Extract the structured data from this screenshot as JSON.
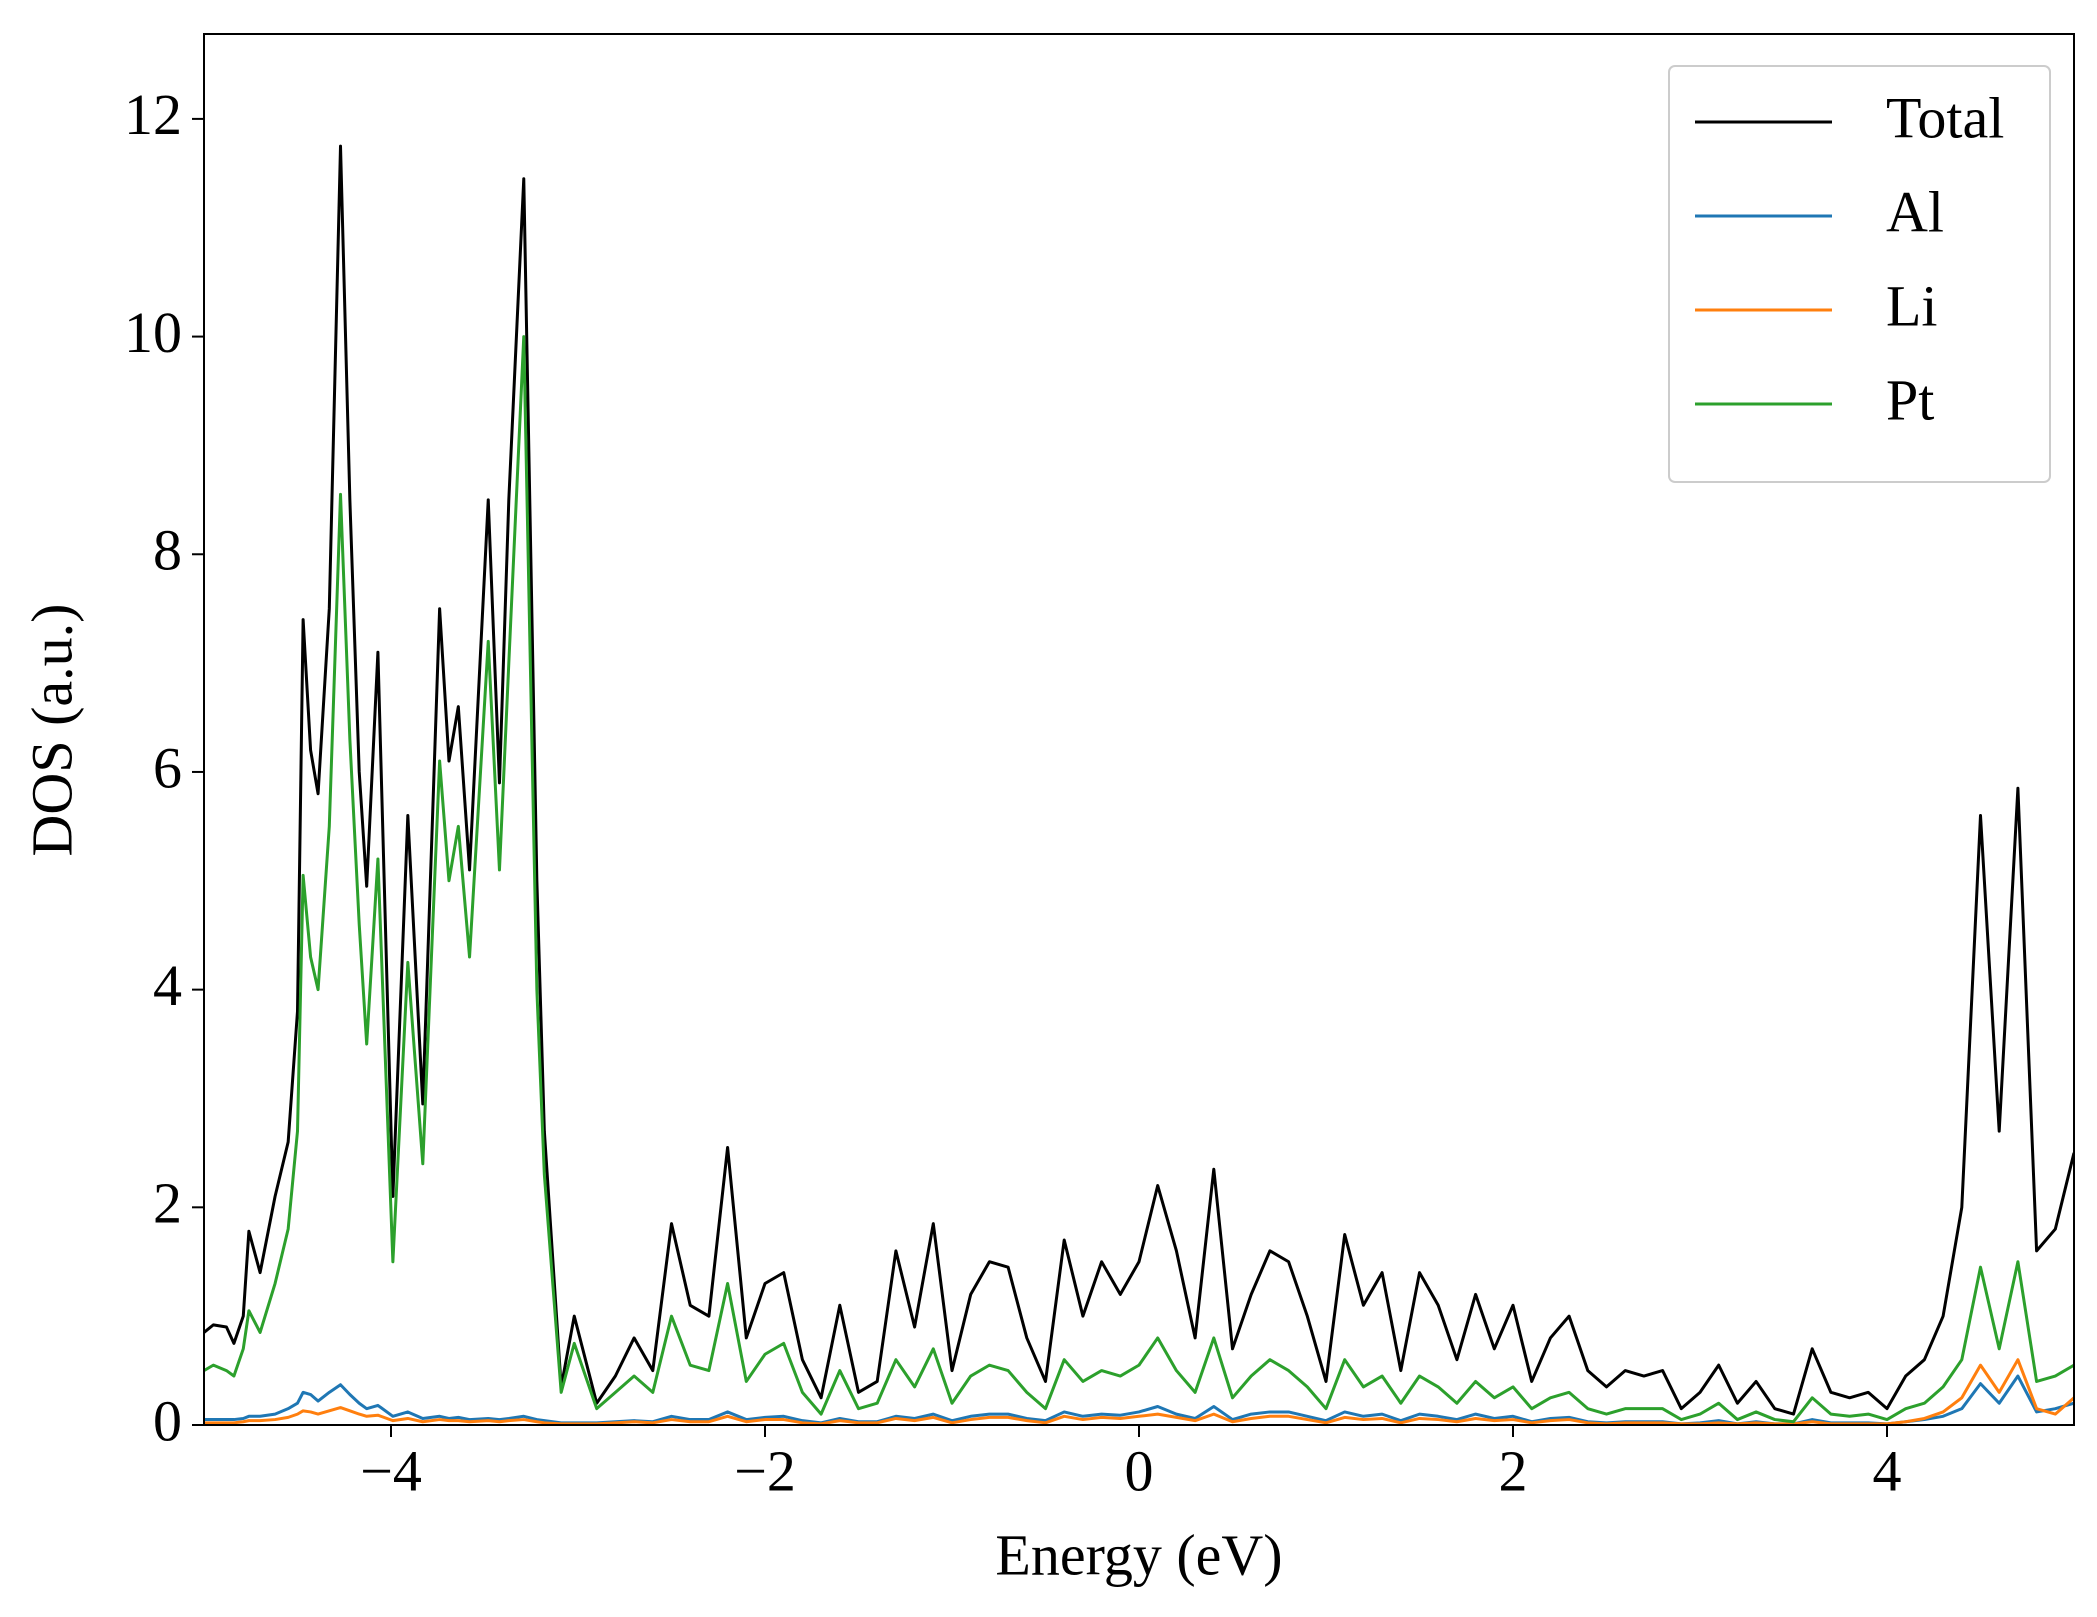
{
  "chart_data": {
    "type": "line",
    "xlabel": "Energy (eV)",
    "ylabel": "DOS (a.u.)",
    "x": [
      -5,
      -4.95,
      -4.88,
      -4.84,
      -4.79,
      -4.76,
      -4.7,
      -4.62,
      -4.55,
      -4.5,
      -4.47,
      -4.43,
      -4.39,
      -4.33,
      -4.27,
      -4.22,
      -4.17,
      -4.13,
      -4.07,
      -3.99,
      -3.91,
      -3.83,
      -3.74,
      -3.69,
      -3.64,
      -3.58,
      -3.48,
      -3.42,
      -3.37,
      -3.29,
      -3.22,
      -3.18,
      -3.09,
      -3.02,
      -2.9,
      -2.8,
      -2.7,
      -2.6,
      -2.5,
      -2.4,
      -2.3,
      -2.2,
      -2.1,
      -2.0,
      -1.9,
      -1.8,
      -1.7,
      -1.6,
      -1.5,
      -1.4,
      -1.3,
      -1.2,
      -1.1,
      -1.0,
      -0.9,
      -0.8,
      -0.7,
      -0.6,
      -0.5,
      -0.4,
      -0.3,
      -0.2,
      -0.1,
      0.0,
      0.1,
      0.2,
      0.3,
      0.4,
      0.5,
      0.6,
      0.7,
      0.8,
      0.9,
      1.0,
      1.1,
      1.2,
      1.3,
      1.4,
      1.5,
      1.6,
      1.7,
      1.8,
      1.9,
      2.0,
      2.1,
      2.2,
      2.3,
      2.4,
      2.5,
      2.6,
      2.7,
      2.8,
      2.9,
      3.0,
      3.1,
      3.2,
      3.3,
      3.4,
      3.5,
      3.6,
      3.7,
      3.8,
      3.9,
      4.0,
      4.1,
      4.2,
      4.3,
      4.4,
      4.5,
      4.6,
      4.7,
      4.8,
      4.9,
      5.0
    ],
    "series": [
      {
        "name": "Total",
        "color": "#000000",
        "values": [
          0.85,
          0.92,
          0.9,
          0.75,
          1.0,
          1.78,
          1.4,
          2.1,
          2.6,
          3.8,
          7.4,
          6.2,
          5.8,
          7.5,
          11.75,
          8.5,
          6.0,
          4.95,
          7.1,
          2.1,
          5.6,
          2.95,
          7.5,
          6.1,
          6.6,
          5.1,
          8.5,
          5.9,
          8.5,
          11.45,
          5.0,
          2.7,
          0.35,
          1.0,
          0.2,
          0.45,
          0.8,
          0.5,
          1.85,
          1.1,
          1.0,
          2.55,
          0.8,
          1.3,
          1.4,
          0.6,
          0.25,
          1.1,
          0.3,
          0.4,
          1.6,
          0.9,
          1.85,
          0.5,
          1.2,
          1.5,
          1.45,
          0.8,
          0.4,
          1.7,
          1.0,
          1.5,
          1.2,
          1.5,
          2.2,
          1.6,
          0.8,
          2.35,
          0.7,
          1.2,
          1.6,
          1.5,
          1.0,
          0.4,
          1.75,
          1.1,
          1.4,
          0.5,
          1.4,
          1.1,
          0.6,
          1.2,
          0.7,
          1.1,
          0.4,
          0.8,
          1.0,
          0.5,
          0.35,
          0.5,
          0.45,
          0.5,
          0.15,
          0.3,
          0.55,
          0.2,
          0.4,
          0.15,
          0.1,
          0.7,
          0.3,
          0.25,
          0.3,
          0.15,
          0.45,
          0.6,
          1.0,
          2.0,
          5.6,
          2.7,
          5.85,
          1.6,
          1.8,
          2.5
        ]
      },
      {
        "name": "Al",
        "color": "#1f77b4",
        "values": [
          0.05,
          0.05,
          0.05,
          0.05,
          0.06,
          0.08,
          0.08,
          0.1,
          0.15,
          0.2,
          0.3,
          0.28,
          0.22,
          0.3,
          0.37,
          0.28,
          0.2,
          0.15,
          0.18,
          0.08,
          0.12,
          0.06,
          0.08,
          0.06,
          0.07,
          0.05,
          0.06,
          0.05,
          0.06,
          0.08,
          0.05,
          0.04,
          0.02,
          0.02,
          0.02,
          0.03,
          0.04,
          0.03,
          0.08,
          0.05,
          0.05,
          0.12,
          0.05,
          0.07,
          0.08,
          0.04,
          0.02,
          0.06,
          0.03,
          0.03,
          0.08,
          0.06,
          0.1,
          0.04,
          0.08,
          0.1,
          0.1,
          0.06,
          0.04,
          0.12,
          0.08,
          0.1,
          0.09,
          0.12,
          0.17,
          0.1,
          0.06,
          0.17,
          0.05,
          0.1,
          0.12,
          0.12,
          0.08,
          0.04,
          0.12,
          0.08,
          0.1,
          0.04,
          0.1,
          0.08,
          0.05,
          0.1,
          0.06,
          0.08,
          0.03,
          0.06,
          0.07,
          0.03,
          0.02,
          0.03,
          0.03,
          0.03,
          0.01,
          0.02,
          0.04,
          0.01,
          0.03,
          0.01,
          0.01,
          0.05,
          0.02,
          0.02,
          0.02,
          0.01,
          0.03,
          0.05,
          0.08,
          0.15,
          0.38,
          0.2,
          0.45,
          0.12,
          0.15,
          0.2
        ]
      },
      {
        "name": "Li",
        "color": "#ff7f0e",
        "values": [
          0.02,
          0.02,
          0.02,
          0.02,
          0.03,
          0.04,
          0.04,
          0.05,
          0.07,
          0.1,
          0.13,
          0.12,
          0.1,
          0.13,
          0.16,
          0.13,
          0.1,
          0.08,
          0.09,
          0.04,
          0.06,
          0.03,
          0.05,
          0.04,
          0.04,
          0.03,
          0.04,
          0.03,
          0.04,
          0.05,
          0.03,
          0.02,
          0.01,
          0.01,
          0.01,
          0.02,
          0.03,
          0.02,
          0.05,
          0.03,
          0.03,
          0.08,
          0.03,
          0.05,
          0.05,
          0.02,
          0.01,
          0.04,
          0.02,
          0.02,
          0.06,
          0.04,
          0.07,
          0.02,
          0.05,
          0.07,
          0.07,
          0.04,
          0.02,
          0.08,
          0.05,
          0.07,
          0.06,
          0.08,
          0.1,
          0.07,
          0.04,
          0.1,
          0.03,
          0.06,
          0.08,
          0.08,
          0.05,
          0.02,
          0.07,
          0.05,
          0.06,
          0.02,
          0.06,
          0.05,
          0.03,
          0.06,
          0.04,
          0.05,
          0.02,
          0.04,
          0.05,
          0.02,
          0.01,
          0.02,
          0.02,
          0.02,
          0.01,
          0.01,
          0.02,
          0.01,
          0.02,
          0.01,
          0.01,
          0.03,
          0.01,
          0.01,
          0.01,
          0.01,
          0.03,
          0.06,
          0.12,
          0.25,
          0.55,
          0.3,
          0.6,
          0.15,
          0.1,
          0.25
        ]
      },
      {
        "name": "Pt",
        "color": "#2ca02c",
        "values": [
          0.5,
          0.55,
          0.5,
          0.45,
          0.7,
          1.05,
          0.85,
          1.3,
          1.8,
          2.7,
          5.05,
          4.3,
          4.0,
          5.5,
          8.55,
          6.3,
          4.6,
          3.5,
          5.2,
          1.5,
          4.25,
          2.4,
          6.1,
          5.0,
          5.5,
          4.3,
          7.2,
          5.1,
          7.0,
          10.0,
          4.0,
          2.3,
          0.3,
          0.75,
          0.15,
          0.3,
          0.45,
          0.3,
          1.0,
          0.55,
          0.5,
          1.3,
          0.4,
          0.65,
          0.75,
          0.3,
          0.1,
          0.5,
          0.15,
          0.2,
          0.6,
          0.35,
          0.7,
          0.2,
          0.45,
          0.55,
          0.5,
          0.3,
          0.15,
          0.6,
          0.4,
          0.5,
          0.45,
          0.55,
          0.8,
          0.5,
          0.3,
          0.8,
          0.25,
          0.45,
          0.6,
          0.5,
          0.35,
          0.15,
          0.6,
          0.35,
          0.45,
          0.2,
          0.45,
          0.35,
          0.2,
          0.4,
          0.25,
          0.35,
          0.15,
          0.25,
          0.3,
          0.15,
          0.1,
          0.15,
          0.15,
          0.15,
          0.05,
          0.1,
          0.2,
          0.05,
          0.12,
          0.05,
          0.03,
          0.25,
          0.1,
          0.08,
          0.1,
          0.05,
          0.15,
          0.2,
          0.35,
          0.6,
          1.45,
          0.7,
          1.5,
          0.4,
          0.45,
          0.55
        ]
      }
    ],
    "xlim": [
      -5,
      5
    ],
    "xticks": [
      {
        "value": -4,
        "label": "−4"
      },
      {
        "value": -2,
        "label": "−2"
      },
      0,
      2,
      4
    ],
    "ylim": [
      0,
      12.78
    ],
    "yticks": [
      0,
      2,
      4,
      6,
      8,
      10,
      12
    ],
    "grid": false,
    "legend": "upper right"
  }
}
